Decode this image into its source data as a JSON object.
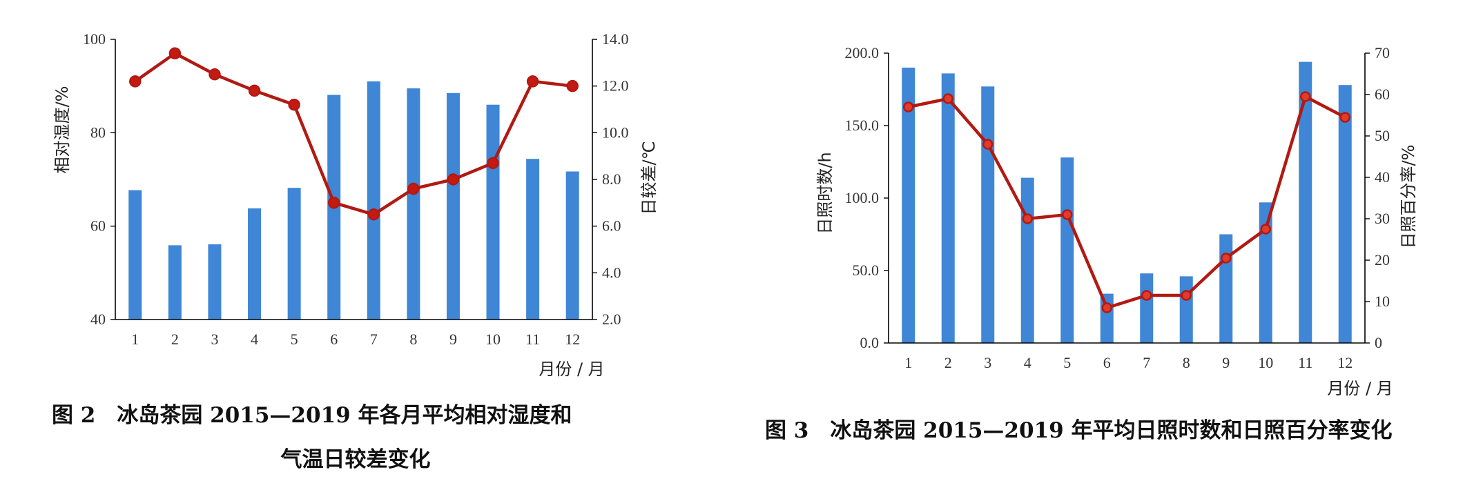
{
  "figures": [
    {
      "caption_lines": [
        "图 2　冰岛茶园 2015—2019 年各月平均相对湿度和",
        "气温日较差变化"
      ]
    },
    {
      "caption_lines": [
        "图 3　冰岛茶园 2015—2019 年平均日照时数和日照百分率变化"
      ]
    }
  ],
  "chart_data": [
    {
      "type": "bar+line",
      "title": "",
      "categories": [
        "1",
        "2",
        "3",
        "4",
        "5",
        "6",
        "7",
        "8",
        "9",
        "10",
        "11",
        "12"
      ],
      "xlabel": "月份 / 月",
      "ylabel_left": "相对湿度/%",
      "ylabel_right": "日较差/℃",
      "ylim_left": [
        40,
        100
      ],
      "yticks_left": [
        "40",
        "60",
        "80",
        "100"
      ],
      "ylim_right": [
        2.0,
        14.0
      ],
      "yticks_right": [
        "2.0",
        "4.0",
        "6.0",
        "8.0",
        "10.0",
        "12.0",
        "14.0"
      ],
      "grid": false,
      "legend": "none",
      "series": [
        {
          "kind": "bar",
          "axis": "left",
          "color": "#3f86d6",
          "values": [
            67.7,
            55.9,
            56.1,
            63.8,
            68.2,
            88.1,
            91.0,
            89.5,
            88.5,
            86.0,
            74.4,
            71.7
          ]
        },
        {
          "kind": "line",
          "axis": "right",
          "color": "#b11a12",
          "values": [
            12.2,
            13.4,
            12.5,
            11.8,
            11.2,
            7.0,
            6.5,
            7.6,
            8.0,
            8.7,
            12.2,
            12.0
          ]
        }
      ]
    },
    {
      "type": "bar+line",
      "title": "",
      "categories": [
        "1",
        "2",
        "3",
        "4",
        "5",
        "6",
        "7",
        "8",
        "9",
        "10",
        "11",
        "12"
      ],
      "xlabel": "月份 / 月",
      "ylabel_left": "日照时数/h",
      "ylabel_right": "日照百分率/%",
      "ylim_left": [
        0,
        200
      ],
      "yticks_left": [
        "0.0",
        "50.0",
        "100.0",
        "150.0",
        "200.0"
      ],
      "ylim_right": [
        0,
        70
      ],
      "yticks_right": [
        "0",
        "10",
        "20",
        "30",
        "40",
        "50",
        "60",
        "70"
      ],
      "grid": false,
      "legend": "none",
      "series": [
        {
          "kind": "bar",
          "axis": "left",
          "color": "#3f86d6",
          "values": [
            190,
            186,
            177,
            114,
            128,
            34,
            48,
            46,
            75,
            97,
            194,
            178
          ]
        },
        {
          "kind": "line",
          "axis": "right",
          "color": "#b11a12",
          "values": [
            57.0,
            59.0,
            48.0,
            30.0,
            31.0,
            8.5,
            11.5,
            11.5,
            20.5,
            27.5,
            59.5,
            54.5
          ]
        }
      ]
    }
  ]
}
